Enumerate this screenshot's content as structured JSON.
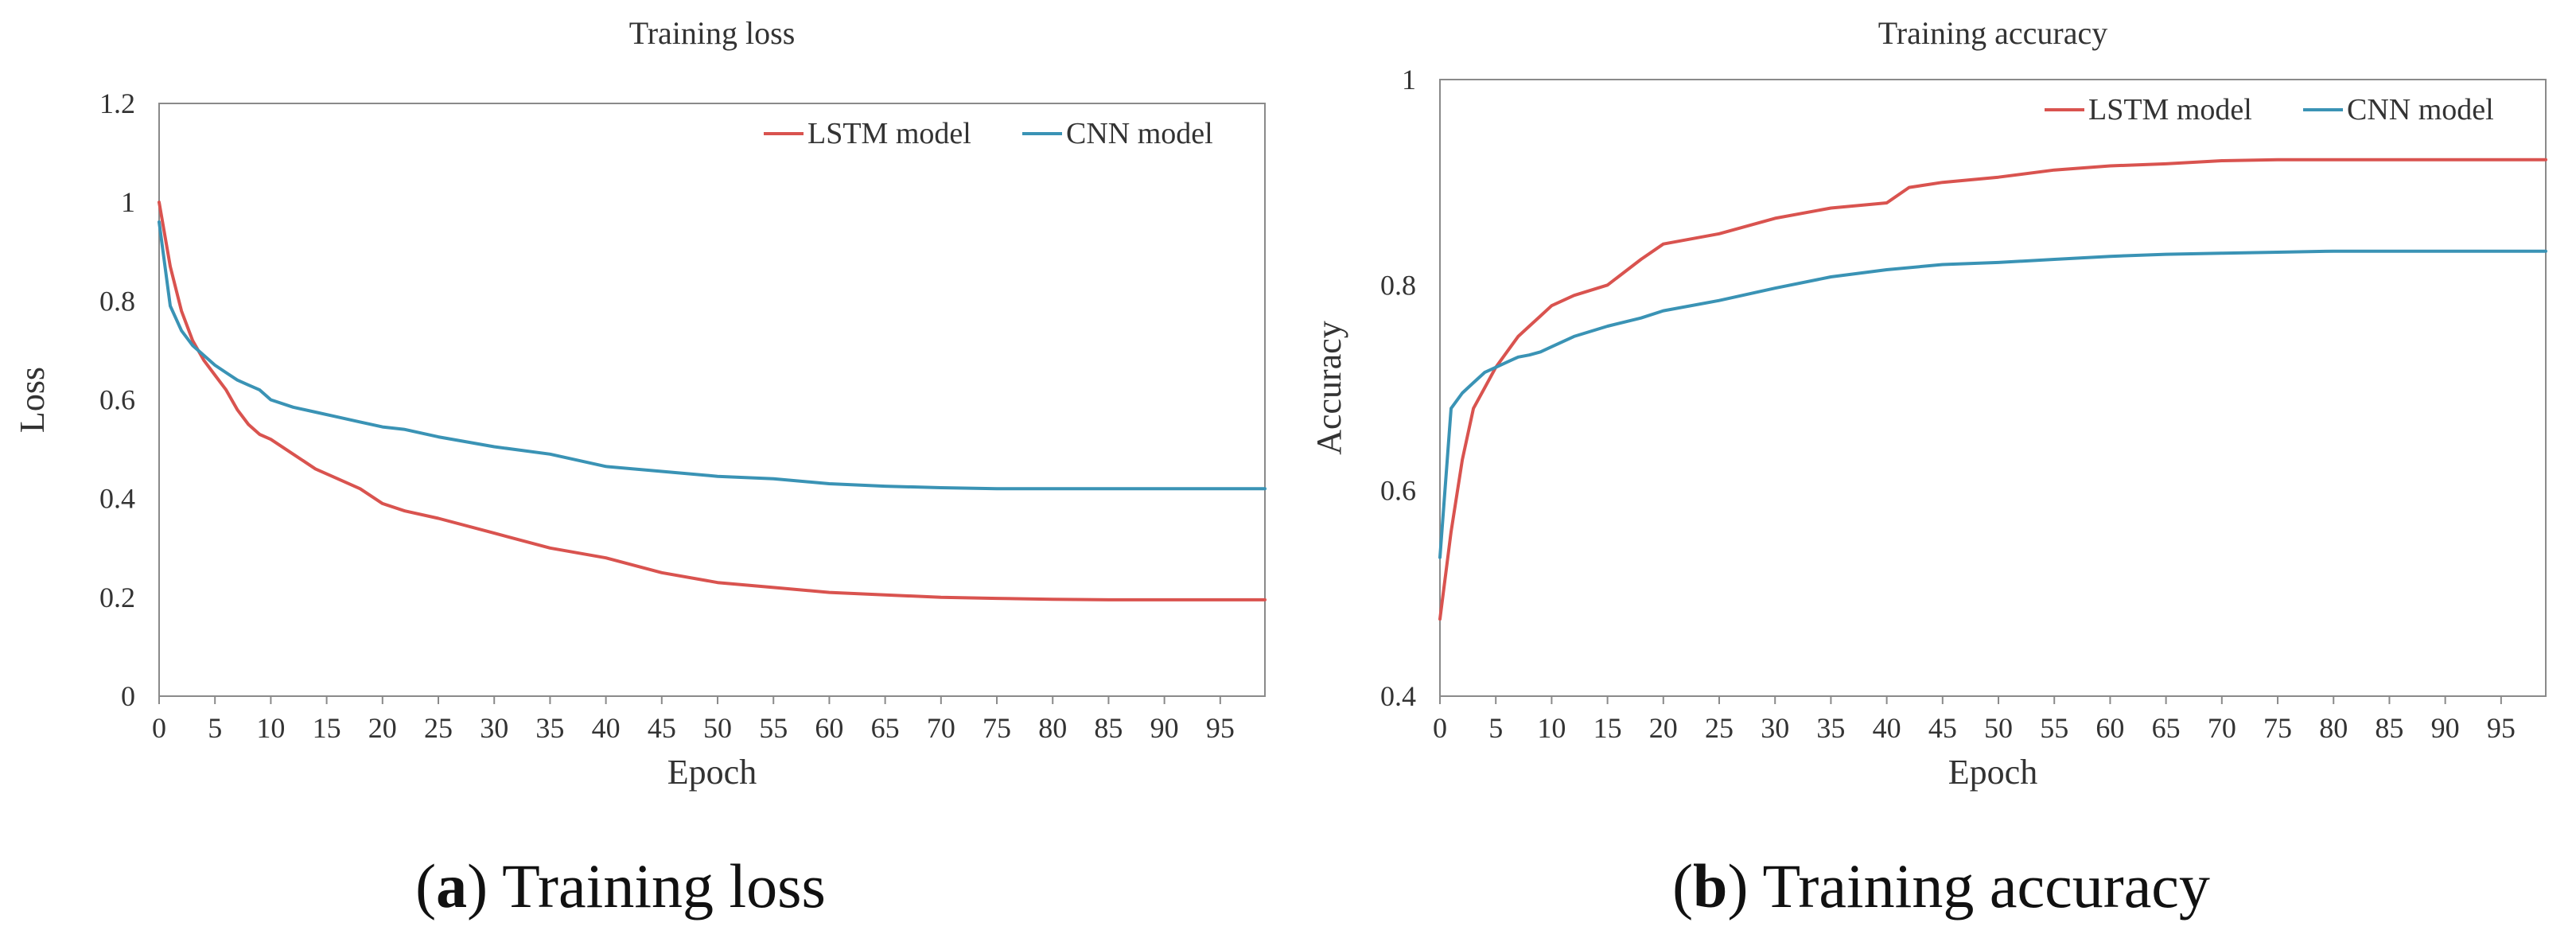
{
  "chart_data": [
    {
      "type": "line",
      "title": "Training loss",
      "xlabel": "Epoch",
      "ylabel": "Loss",
      "xlim": [
        0,
        99
      ],
      "ylim": [
        0,
        1.2
      ],
      "x_ticks": [
        0,
        5,
        10,
        15,
        20,
        25,
        30,
        35,
        40,
        45,
        50,
        55,
        60,
        65,
        70,
        75,
        80,
        85,
        90,
        95
      ],
      "y_ticks": [
        0,
        0.2,
        0.4,
        0.6,
        0.8,
        1,
        1.2
      ],
      "y_tick_labels": [
        "0",
        "0.2",
        "0.4",
        "0.6",
        "0.8",
        "1",
        "1.2"
      ],
      "legend_position": "top-right",
      "caption": {
        "letter": "a",
        "text": "Training loss"
      },
      "series": [
        {
          "name": "LSTM model",
          "color": "#d9534f",
          "x": [
            0,
            1,
            2,
            3,
            4,
            5,
            6,
            7,
            8,
            9,
            10,
            12,
            14,
            16,
            18,
            20,
            22,
            25,
            30,
            35,
            40,
            45,
            50,
            55,
            60,
            65,
            70,
            75,
            80,
            85,
            90,
            95,
            99
          ],
          "values": [
            1.0,
            0.87,
            0.78,
            0.72,
            0.68,
            0.65,
            0.62,
            0.58,
            0.55,
            0.53,
            0.52,
            0.49,
            0.46,
            0.44,
            0.42,
            0.39,
            0.375,
            0.36,
            0.33,
            0.3,
            0.28,
            0.25,
            0.23,
            0.22,
            0.21,
            0.205,
            0.2,
            0.198,
            0.196,
            0.195,
            0.195,
            0.195,
            0.195
          ]
        },
        {
          "name": "CNN model",
          "color": "#3a93b5",
          "x": [
            0,
            1,
            2,
            3,
            4,
            5,
            6,
            7,
            8,
            9,
            10,
            12,
            14,
            16,
            18,
            20,
            22,
            25,
            30,
            35,
            40,
            45,
            50,
            55,
            60,
            65,
            70,
            75,
            80,
            85,
            90,
            95,
            99
          ],
          "values": [
            0.96,
            0.79,
            0.74,
            0.71,
            0.69,
            0.67,
            0.655,
            0.64,
            0.63,
            0.62,
            0.6,
            0.585,
            0.575,
            0.565,
            0.555,
            0.545,
            0.54,
            0.525,
            0.505,
            0.49,
            0.465,
            0.455,
            0.445,
            0.44,
            0.43,
            0.425,
            0.422,
            0.42,
            0.42,
            0.42,
            0.42,
            0.42,
            0.42
          ]
        }
      ]
    },
    {
      "type": "line",
      "title": "Training accuracy",
      "xlabel": "Epoch",
      "ylabel": "Accuracy",
      "xlim": [
        0,
        99
      ],
      "ylim": [
        0.4,
        1.0
      ],
      "x_ticks": [
        0,
        5,
        10,
        15,
        20,
        25,
        30,
        35,
        40,
        45,
        50,
        55,
        60,
        65,
        70,
        75,
        80,
        85,
        90,
        95
      ],
      "y_ticks": [
        0.4,
        0.6,
        0.8,
        1.0
      ],
      "y_tick_labels": [
        "0.4",
        "0.6",
        "0.8",
        "1"
      ],
      "legend_position": "top-right",
      "caption": {
        "letter": "b",
        "text": "Training accuracy"
      },
      "series": [
        {
          "name": "LSTM model",
          "color": "#d9534f",
          "x": [
            0,
            1,
            2,
            3,
            4,
            5,
            6,
            7,
            8,
            9,
            10,
            12,
            15,
            18,
            20,
            25,
            30,
            35,
            40,
            42,
            45,
            50,
            55,
            60,
            65,
            70,
            75,
            80,
            85,
            90,
            95,
            99
          ],
          "values": [
            0.475,
            0.56,
            0.63,
            0.68,
            0.7,
            0.72,
            0.735,
            0.75,
            0.76,
            0.77,
            0.78,
            0.79,
            0.8,
            0.825,
            0.84,
            0.85,
            0.865,
            0.875,
            0.88,
            0.895,
            0.9,
            0.905,
            0.912,
            0.916,
            0.918,
            0.921,
            0.922,
            0.922,
            0.922,
            0.922,
            0.922,
            0.922
          ]
        },
        {
          "name": "CNN model",
          "color": "#3a93b5",
          "x": [
            0,
            1,
            2,
            3,
            4,
            5,
            6,
            7,
            8,
            9,
            10,
            12,
            15,
            18,
            20,
            25,
            30,
            35,
            40,
            45,
            50,
            55,
            60,
            65,
            70,
            75,
            80,
            85,
            90,
            95,
            99
          ],
          "values": [
            0.535,
            0.68,
            0.695,
            0.705,
            0.715,
            0.72,
            0.725,
            0.73,
            0.732,
            0.735,
            0.74,
            0.75,
            0.76,
            0.768,
            0.775,
            0.785,
            0.797,
            0.808,
            0.815,
            0.82,
            0.822,
            0.825,
            0.828,
            0.83,
            0.831,
            0.832,
            0.833,
            0.833,
            0.833,
            0.833,
            0.833
          ]
        }
      ]
    }
  ]
}
